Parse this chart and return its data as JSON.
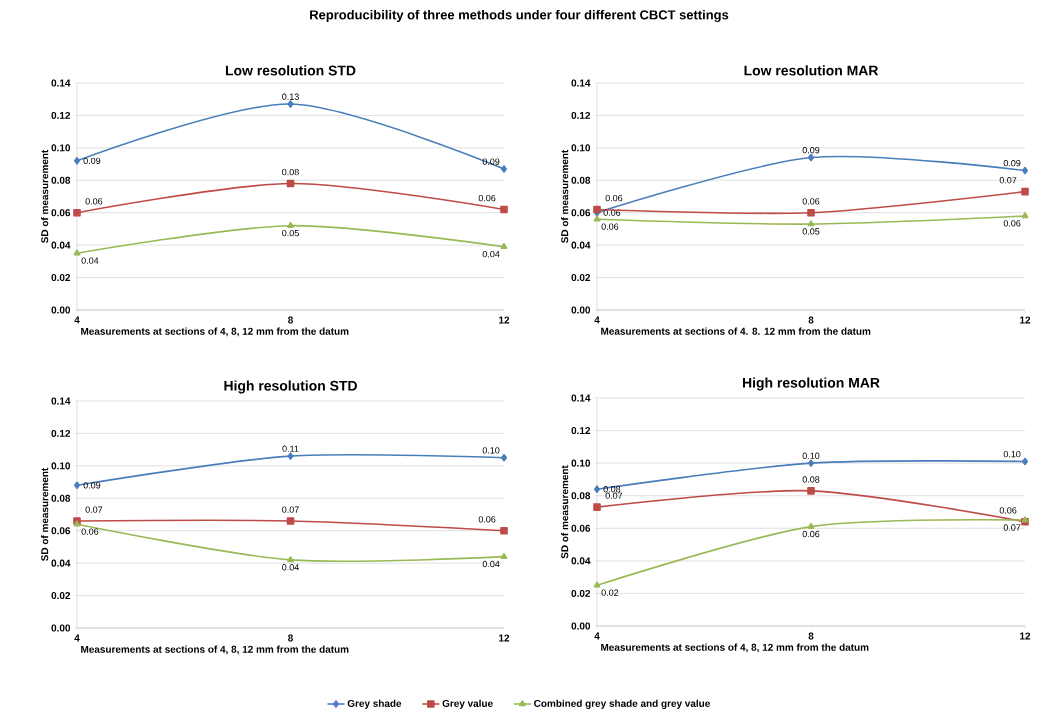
{
  "chart_data": [
    {
      "type": "line",
      "title": "Low resolution STD",
      "xlabel": "Measurements at sections of 4, 8, 12 mm from the datum",
      "ylabel": "SD of measurement",
      "annotations": [
        "Reproducibility of three methods under four different CBCT settings"
      ],
      "x": [
        4,
        8,
        12
      ],
      "xlim": [
        4,
        12
      ],
      "xticks": [
        4,
        8,
        12
      ],
      "ylim": [
        0,
        0.14
      ],
      "yticks": [
        {
          "value": 0,
          "label": "0.00"
        },
        {
          "value": 0.02,
          "label": "0.02"
        },
        {
          "value": 0.04,
          "label": "0.04"
        },
        {
          "value": 0.06,
          "label": "0.06"
        },
        {
          "value": 0.08,
          "label": "0.08"
        },
        {
          "value": 0.1,
          "label": "0.10"
        },
        {
          "value": 0.12,
          "label": "0.12"
        },
        {
          "value": 0.14,
          "label": "0.14"
        }
      ],
      "grid": "y",
      "line_style": "solid",
      "legend": false,
      "series": [
        {
          "color": "#4a7ebb",
          "marker": "diamond",
          "values": [
            0.092,
            0.127,
            0.087
          ],
          "value_labels": [
            "0.09",
            "0.13",
            "0.09"
          ]
        },
        {
          "color": "#be4b48",
          "marker": "square",
          "values": [
            0.06,
            0.078,
            0.062
          ],
          "value_labels": [
            "0.06",
            "0.08",
            "0.06"
          ]
        },
        {
          "color": "#98b954",
          "marker": "triangle",
          "values": [
            0.035,
            0.052,
            0.039
          ],
          "value_labels": [
            "0.04",
            "0.05",
            "0.04"
          ]
        }
      ]
    },
    {
      "type": "line",
      "title": "Low resolution MAR",
      "xlabel": "Measurements at sections of 4. 8. 12 mm from the datum",
      "ylabel": "SD of measurement",
      "x": [
        4,
        8,
        12
      ],
      "xlim": [
        4,
        12
      ],
      "xticks": [
        4,
        8,
        12
      ],
      "ylim": [
        0,
        0.14
      ],
      "yticks": [
        {
          "value": 0,
          "label": "0.00"
        },
        {
          "value": 0.02,
          "label": "0.02"
        },
        {
          "value": 0.04,
          "label": "0.04"
        },
        {
          "value": 0.06,
          "label": "0.06"
        },
        {
          "value": 0.08,
          "label": "0.08"
        },
        {
          "value": 0.1,
          "label": "0.10"
        },
        {
          "value": 0.12,
          "label": "0.12"
        },
        {
          "value": 0.14,
          "label": "0.14"
        }
      ],
      "grid": "y",
      "line_style": "solid",
      "legend": false,
      "series": [
        {
          "color": "#4a7ebb",
          "marker": "diamond",
          "values": [
            0.06,
            0.094,
            0.086
          ],
          "value_labels": [
            "0.06",
            "0.09",
            "0.09"
          ]
        },
        {
          "color": "#be4b48",
          "marker": "square",
          "values": [
            0.062,
            0.06,
            0.073
          ],
          "value_labels": [
            "0.06",
            "0.06",
            "0.07"
          ]
        },
        {
          "color": "#98b954",
          "marker": "triangle",
          "values": [
            0.056,
            0.053,
            0.058
          ],
          "value_labels": [
            "0.06",
            "0.05",
            "0.06"
          ]
        }
      ]
    },
    {
      "type": "line",
      "title": "High resolution STD",
      "xlabel": "Measurements at sections of 4, 8, 12 mm from the datum",
      "ylabel": "SD of measurement",
      "x": [
        4,
        8,
        12
      ],
      "xlim": [
        4,
        12
      ],
      "xticks": [
        4,
        8,
        12
      ],
      "ylim": [
        0,
        0.14
      ],
      "yticks": [
        {
          "value": 0,
          "label": "0.00"
        },
        {
          "value": 0.02,
          "label": "0.02"
        },
        {
          "value": 0.04,
          "label": "0.04"
        },
        {
          "value": 0.06,
          "label": "0.06"
        },
        {
          "value": 0.08,
          "label": "0.08"
        },
        {
          "value": 0.1,
          "label": "0.10"
        },
        {
          "value": 0.12,
          "label": "0.12"
        },
        {
          "value": 0.14,
          "label": "0.14"
        }
      ],
      "grid": "y",
      "line_style": "solid",
      "legend": false,
      "series": [
        {
          "color": "#4a7ebb",
          "marker": "diamond",
          "values": [
            0.088,
            0.106,
            0.105
          ],
          "value_labels": [
            "0.09",
            "0.11",
            "0.10"
          ]
        },
        {
          "color": "#be4b48",
          "marker": "square",
          "values": [
            0.066,
            0.066,
            0.06
          ],
          "value_labels": [
            "0.07",
            "0.07",
            "0.06"
          ]
        },
        {
          "color": "#98b954",
          "marker": "triangle",
          "values": [
            0.064,
            0.042,
            0.044
          ],
          "value_labels": [
            "0.06",
            "0.04",
            "0.04"
          ]
        }
      ]
    },
    {
      "type": "line",
      "title": "High resolution MAR",
      "xlabel": "Measurements at sections of 4, 8, 12 mm from the datum",
      "ylabel": "SD of measurement",
      "x": [
        4,
        8,
        12
      ],
      "xlim": [
        4,
        12
      ],
      "xticks": [
        4,
        8,
        12
      ],
      "ylim": [
        0,
        0.14
      ],
      "yticks": [
        {
          "value": 0,
          "label": "0.00"
        },
        {
          "value": 0.02,
          "label": "0.02"
        },
        {
          "value": 0.04,
          "label": "0.04"
        },
        {
          "value": 0.06,
          "label": "0.06"
        },
        {
          "value": 0.08,
          "label": "0.08"
        },
        {
          "value": 0.1,
          "label": "0.10"
        },
        {
          "value": 0.12,
          "label": "0.12"
        },
        {
          "value": 0.14,
          "label": "0.14"
        }
      ],
      "grid": "y",
      "line_style": "solid",
      "legend": "bottom",
      "series": [
        {
          "name": "Grey shade",
          "color": "#4a7ebb",
          "marker": "diamond",
          "values": [
            0.084,
            0.1,
            0.101
          ],
          "value_labels": [
            "0.08",
            "0.10",
            "0.10"
          ]
        },
        {
          "name": "Grey value",
          "color": "#be4b48",
          "marker": "square",
          "values": [
            0.073,
            0.083,
            0.064
          ],
          "value_labels": [
            "0.07",
            "0.08",
            "0.06"
          ]
        },
        {
          "name": "Combined grey shade and grey value",
          "color": "#98b954",
          "marker": "triangle",
          "values": [
            0.025,
            0.061,
            0.065
          ],
          "value_labels": [
            "0.02",
            "0.06",
            "0.07"
          ]
        }
      ]
    }
  ]
}
